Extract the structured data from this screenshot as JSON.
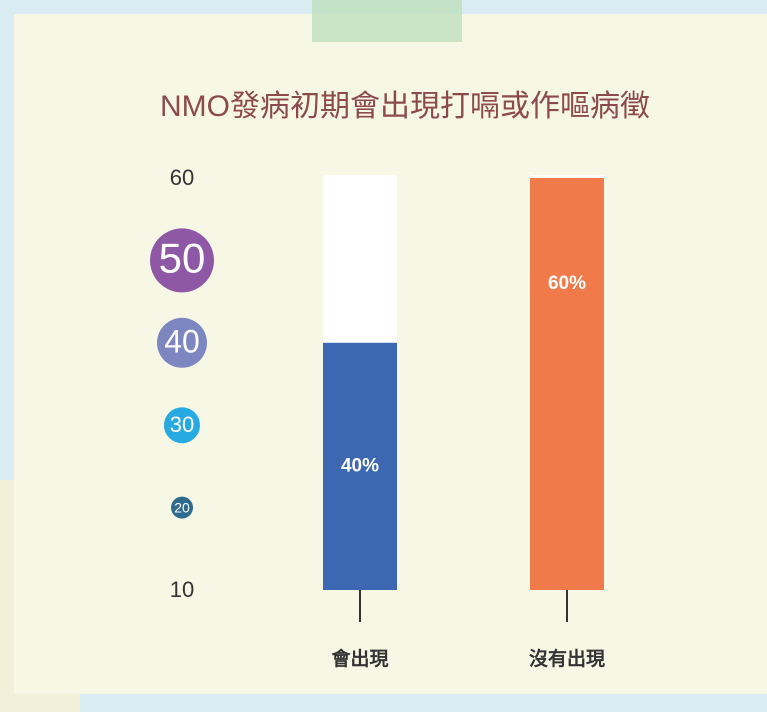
{
  "chart_data": {
    "type": "bar",
    "title": "NMO發病初期會出現打嗝或作嘔病徵",
    "categories": [
      "會出現",
      "沒有出現"
    ],
    "values": [
      40,
      60
    ],
    "value_labels": [
      "40%",
      "60%"
    ],
    "colors": [
      "#3d67b0",
      "#f07a4a"
    ],
    "ylim": [
      10,
      60
    ],
    "yticks": [
      10,
      20,
      30,
      40,
      50,
      60
    ],
    "grid": false
  }
}
